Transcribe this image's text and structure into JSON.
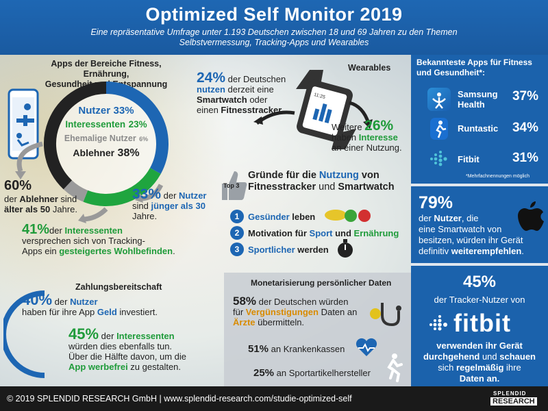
{
  "header": {
    "title": "Optimized Self Monitor 2019",
    "subtitle_line1": "Eine repräsentative Umfrage unter 1.193  Deutschen zwischen 18 und 69 Jahren zu den Themen",
    "subtitle_line2": "Selbstvermessung, Tracking-Apps und Wearables"
  },
  "apps_section": {
    "heading_line1": "Apps der Bereiche Fitness, Ernährung,",
    "heading_line2": "Gesundheit und Entspannung",
    "chart_data": {
      "type": "pie",
      "categories": [
        "Nutzer",
        "Interessenten",
        "Ehemalige Nutzer",
        "Ablehner"
      ],
      "values": [
        33,
        23,
        6,
        38
      ],
      "value_labels": [
        "33%",
        "23%",
        "6%",
        "38%"
      ],
      "colors": [
        "#1d66b3",
        "#1fa53f",
        "#9a9a9a",
        "#222222"
      ]
    },
    "stat_60_value": "60%",
    "stat_60_line1_a": "der ",
    "stat_60_line1_b": "Ablehner",
    "stat_60_line1_c": " sind",
    "stat_60_line2_a": "älter als 50",
    "stat_60_line2_b": " Jahre.",
    "stat_33_value": "33%",
    "stat_33_line1_a": " der ",
    "stat_33_line1_b": "Nutzer",
    "stat_33_line2_a": "sind ",
    "stat_33_line2_b": "jünger als 30",
    "stat_33_line3": "Jahre.",
    "stat_41_value": "41%",
    "stat_41_line1_a": "der ",
    "stat_41_line1_b": "Interessenten",
    "stat_41_line2": "versprechen  sich von Tracking-",
    "stat_41_line3_a": "Apps ein ",
    "stat_41_line3_b": "gesteigertes Wohlbefinden",
    "stat_41_line3_c": "."
  },
  "wearables": {
    "heading": "Wearables",
    "stat_24_value": "24%",
    "stat_24_line1": " der Deutschen",
    "stat_24_line2_a": "nutzen",
    "stat_24_line2_b": " derzeit eine",
    "stat_24_line3_a": "Smartwatch",
    "stat_24_line3_b": " oder",
    "stat_24_line4_a": "einen ",
    "stat_24_line4_b": "Fitnesstracker",
    "stat_24_line4_c": ".",
    "watch_time": "11:25",
    "stat_26_prefix": "Weitere ",
    "stat_26_value": "26%",
    "stat_26_line2_a": "haben ",
    "stat_26_line2_b": "Interesse",
    "stat_26_line3": "an einer Nutzung."
  },
  "reasons": {
    "badge": "Top 3",
    "title_line1_a": "Gründe für die ",
    "title_line1_b": "Nutzung",
    "title_line1_c": " von",
    "title_line2_a": "Fitnesstracker",
    "title_line2_b": " und ",
    "title_line2_c": "Smartwatch",
    "items": [
      {
        "num": "1",
        "a": "Gesünder",
        "b": " leben",
        "c": ""
      },
      {
        "num": "2",
        "a": "Motivation für ",
        "b": "Sport",
        "c": " und ",
        "d": "Ernährung"
      },
      {
        "num": "3",
        "a": "Sportlicher",
        "b": " werden",
        "c": ""
      }
    ]
  },
  "payment": {
    "heading": "Zahlungsbereitschaft",
    "stat_40_value": "40%",
    "stat_40_line1_a": " der ",
    "stat_40_line1_b": "Nutzer",
    "stat_40_line2_a": "haben für ihre App ",
    "stat_40_line2_b": "Geld",
    "stat_40_line2_c": " investiert.",
    "stat_45_value": "45%",
    "stat_45_line1_a": " der ",
    "stat_45_line1_b": "Interessenten",
    "stat_45_line2": "würden dies ebenfalls tun.",
    "stat_45_line3": "Über die Hälfte davon, um die",
    "stat_45_line4_a": "App werbefrei",
    "stat_45_line4_b": " zu gestalten."
  },
  "monetization": {
    "heading": "Monetarisierung persönlicher Daten",
    "stat_58_value": "58%",
    "stat_58_line1": " der Deutschen würden",
    "stat_58_line2_a": "für ",
    "stat_58_line2_b": "Vergünstigungen",
    "stat_58_line2_c": " Daten an",
    "stat_58_line3_a": "Ärzte",
    "stat_58_line3_b": " übermitteln.",
    "stat_51_value": "51%",
    "stat_51_text": " an Krankenkassen",
    "stat_25_value": "25%",
    "stat_25_text": " an Sportartikelhersteller"
  },
  "top_apps": {
    "heading_line1": "Bekannteste Apps für Fitness",
    "heading_line2": "und Gesundheit*:",
    "items": [
      {
        "name_line1": "Samsung",
        "name_line2": "Health",
        "pct": "37%"
      },
      {
        "name_line1": "Runtastic",
        "name_line2": "",
        "pct": "34%"
      },
      {
        "name_line1": "Fitbit",
        "name_line2": "",
        "pct": "31%"
      }
    ],
    "note": "*Mehrfachnennungen möglich"
  },
  "smartwatch_recommend": {
    "value": "79%",
    "line1_a": "der ",
    "line1_b": "Nutzer",
    "line1_c": ", die",
    "line2": "eine Smartwatch von",
    "line3": "besitzen, würden ihr Gerät",
    "line4_a": "definitiv ",
    "line4_b": "weiterempfehlen",
    "line4_c": "."
  },
  "fitbit_usage": {
    "value": "45%",
    "line1": "der Tracker-Nutzer von",
    "logo_text": "fitbit",
    "line2": "verwenden ihr Gerät",
    "line3_a": "durchgehend",
    "line3_b": " und ",
    "line3_c": "schauen",
    "line4_a": "sich ",
    "line4_b": "regelmäßig",
    "line4_c": " ihre",
    "line5": "Daten an."
  },
  "footer": {
    "text": "© 2019 SPLENDID RESEARCH GmbH  |  www.splendid-research.com/studie-optimized-self",
    "logo_top": "SPLENDID",
    "logo_bottom": "RESEARCH"
  }
}
